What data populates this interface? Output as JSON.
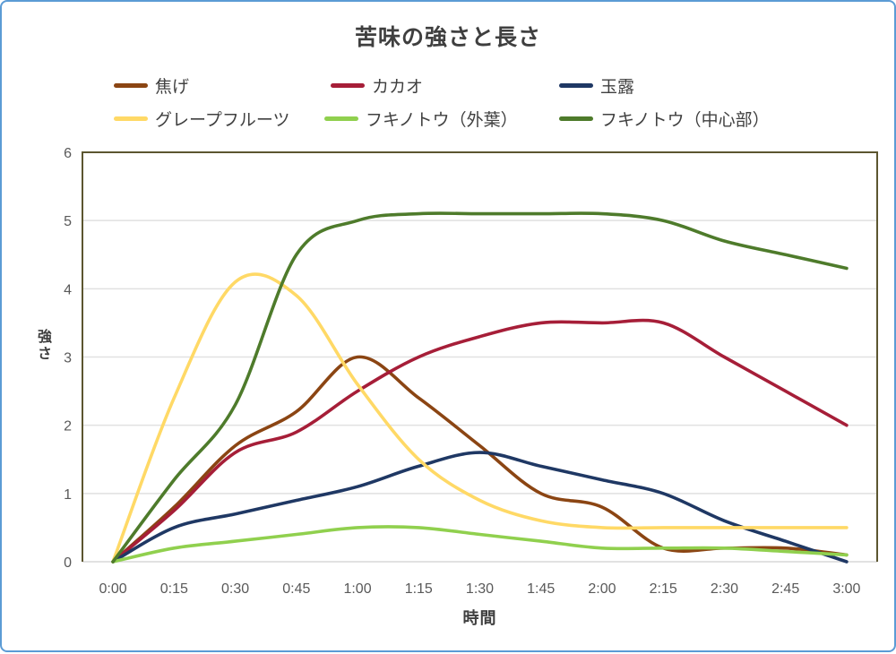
{
  "title": "苦味の強さと長さ",
  "style": {
    "outer_border_color": "#5B9BD5",
    "plot_border_color": "#5C5630",
    "gridline_color": "#E1E1E1",
    "axis_line_color": "#D9D9D9",
    "title_color": "#3F3F3F",
    "tick_label_color": "#595959",
    "legend_text_color": "#404040"
  },
  "chart_data": {
    "type": "line",
    "title": "苦味の強さと長さ",
    "xlabel": "時間",
    "ylabel": "強さ",
    "ylim": [
      0,
      6
    ],
    "y_ticks": [
      0,
      1,
      2,
      3,
      4,
      5,
      6
    ],
    "grid": true,
    "line_style": "smooth",
    "legend_position": "top",
    "categories": [
      "0:00",
      "0:15",
      "0:30",
      "0:45",
      "1:00",
      "1:15",
      "1:30",
      "1:45",
      "2:00",
      "2:15",
      "2:30",
      "2:45",
      "3:00"
    ],
    "series": [
      {
        "key": "koge",
        "name": "焦げ",
        "color": "#8B4513",
        "values": [
          0,
          0.8,
          1.7,
          2.2,
          3.0,
          2.4,
          1.7,
          1.0,
          0.8,
          0.2,
          0.2,
          0.2,
          0.1
        ]
      },
      {
        "key": "cacao",
        "name": "カカオ",
        "color": "#A61E38",
        "values": [
          0,
          0.75,
          1.6,
          1.9,
          2.5,
          3.0,
          3.3,
          3.5,
          3.5,
          3.5,
          3.0,
          2.5,
          2.0
        ]
      },
      {
        "key": "gyokuro",
        "name": "玉露",
        "color": "#1F3864",
        "values": [
          0,
          0.5,
          0.7,
          0.9,
          1.1,
          1.4,
          1.6,
          1.4,
          1.2,
          1.0,
          0.6,
          0.3,
          0.0
        ]
      },
      {
        "key": "grapefruit",
        "name": "グレープフルーツ",
        "color": "#FFD966",
        "values": [
          0,
          2.4,
          4.1,
          3.9,
          2.6,
          1.5,
          0.9,
          0.6,
          0.5,
          0.5,
          0.5,
          0.5,
          0.5
        ]
      },
      {
        "key": "fukinoto-outer",
        "name": "フキノトウ（外葉）",
        "color": "#90D04E",
        "values": [
          0,
          0.2,
          0.3,
          0.4,
          0.5,
          0.5,
          0.4,
          0.3,
          0.2,
          0.2,
          0.2,
          0.15,
          0.1
        ]
      },
      {
        "key": "fukinoto-center",
        "name": "フキノトウ（中心部）",
        "color": "#4E7B2B",
        "values": [
          0,
          1.2,
          2.3,
          4.5,
          5.0,
          5.1,
          5.1,
          5.1,
          5.1,
          5.0,
          4.7,
          4.5,
          4.3
        ]
      }
    ]
  }
}
